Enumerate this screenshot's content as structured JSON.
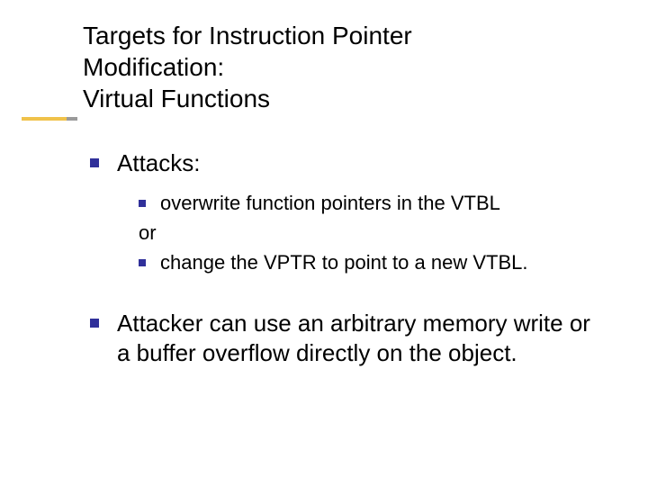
{
  "colors": {
    "bullet": "#30309a",
    "accent_yellow": "#f0c24a",
    "accent_gray": "#9a9a9a",
    "text": "#000000",
    "background": "#ffffff"
  },
  "typography": {
    "title_fontsize": 28,
    "body_fontsize": 26,
    "sub_fontsize": 22,
    "font_family": "Verdana"
  },
  "title": {
    "line1": "Targets for Instruction Pointer",
    "line2": "Modification:",
    "line3": "Virtual Functions"
  },
  "body": {
    "attacks_heading": "Attacks:",
    "sub": {
      "item1": "overwrite function pointers in the VTBL",
      "or": "or",
      "item2": "change the VPTR to point to a new VTBL."
    },
    "para2": "Attacker can use an arbitrary memory write or a buffer overflow directly on the object."
  }
}
